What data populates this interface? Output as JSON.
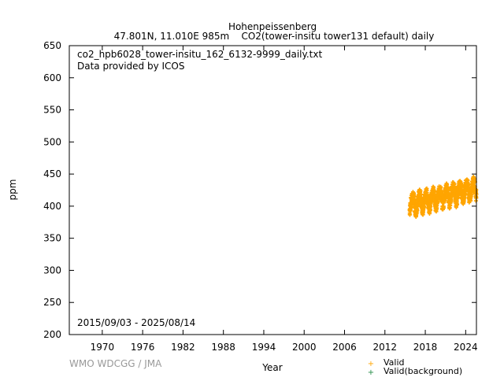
{
  "chart_data": {
    "type": "scatter",
    "title": "Hohenpeissenberg",
    "subtitle": "47.801N, 11.010E 985m    CO2(tower-insitu tower131 default) daily",
    "file_label": "co2_hpb6028_tower-insitu_162_6132-9999_daily.txt",
    "provider_label": "Data provided by ICOS",
    "date_range": "2015/09/03 - 2025/08/14",
    "xlabel": "Year",
    "ylabel": "ppm",
    "xlim": [
      1965.1,
      2025.6
    ],
    "ylim": [
      200,
      650
    ],
    "xticks": [
      1970,
      1976,
      1982,
      1988,
      1994,
      2000,
      2006,
      2012,
      2018,
      2024
    ],
    "yticks": [
      200,
      250,
      300,
      350,
      400,
      450,
      500,
      550,
      600,
      650
    ],
    "grid": false,
    "legend_position": "bottom-right",
    "legend": [
      {
        "label": "Valid",
        "color": "#ffa500"
      },
      {
        "label": "Valid(background)",
        "color": "#228b44"
      }
    ],
    "series": [
      {
        "name": "Valid",
        "color": "#ffa500",
        "note_start": "2015-09",
        "monthly_approx_ppm": [
          394,
          400,
          405,
          408,
          412,
          414,
          414,
          412,
          407,
          400,
          394,
          392,
          396,
          402,
          407,
          410,
          415,
          417,
          417,
          415,
          410,
          403,
          397,
          395,
          399,
          405,
          410,
          413,
          417,
          419,
          419,
          417,
          412,
          405,
          399,
          397,
          401,
          407,
          412,
          415,
          420,
          422,
          422,
          420,
          415,
          408,
          402,
          400,
          404,
          410,
          415,
          418,
          422,
          424,
          424,
          422,
          417,
          410,
          404,
          402,
          406,
          412,
          417,
          420,
          425,
          427,
          427,
          425,
          420,
          413,
          407,
          405,
          409,
          415,
          420,
          423,
          427,
          429,
          429,
          427,
          422,
          415,
          409,
          407,
          411,
          417,
          422,
          425,
          430,
          432,
          432,
          430,
          425,
          418,
          412,
          410,
          414,
          420,
          425,
          428,
          432,
          434,
          434,
          432,
          427,
          420,
          414,
          412,
          416,
          422,
          427,
          430,
          435,
          437,
          437,
          435,
          430,
          423,
          417,
          415
        ]
      },
      {
        "name": "Valid(background)",
        "color": "#228b44",
        "monthly_approx_ppm": []
      }
    ]
  },
  "footer": {
    "credit": "WMO WDCGG / JMA"
  }
}
